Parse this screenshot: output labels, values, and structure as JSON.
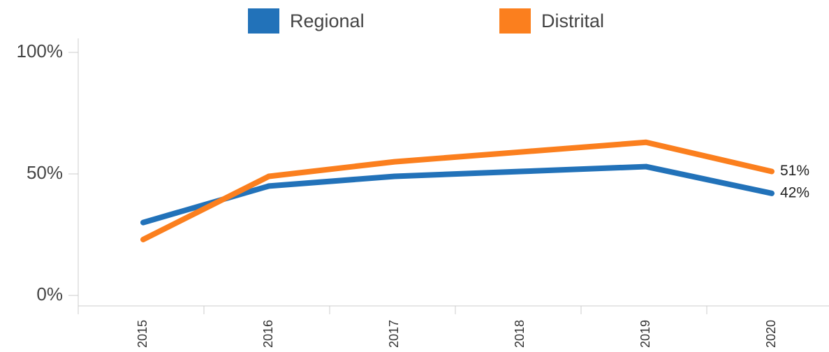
{
  "chart_data": {
    "type": "line",
    "categories": [
      "2015",
      "2016",
      "2017",
      "2018",
      "2019",
      "2020"
    ],
    "series": [
      {
        "name": "Regional",
        "color": "#2272b9",
        "values": [
          30,
          45,
          49,
          51,
          53,
          42
        ],
        "value_labels": [
          null,
          null,
          null,
          null,
          null,
          "42%"
        ]
      },
      {
        "name": "Distrital",
        "color": "#fb7f1e",
        "values": [
          23,
          49,
          55,
          59,
          63,
          51
        ],
        "value_labels": [
          null,
          null,
          null,
          null,
          null,
          "51%"
        ]
      }
    ],
    "ylim": [
      0,
      100
    ],
    "yticks": [
      {
        "value": 0,
        "label": "0%"
      },
      {
        "value": 50,
        "label": "50%"
      },
      {
        "value": 100,
        "label": "100%"
      }
    ],
    "legend": "top"
  }
}
